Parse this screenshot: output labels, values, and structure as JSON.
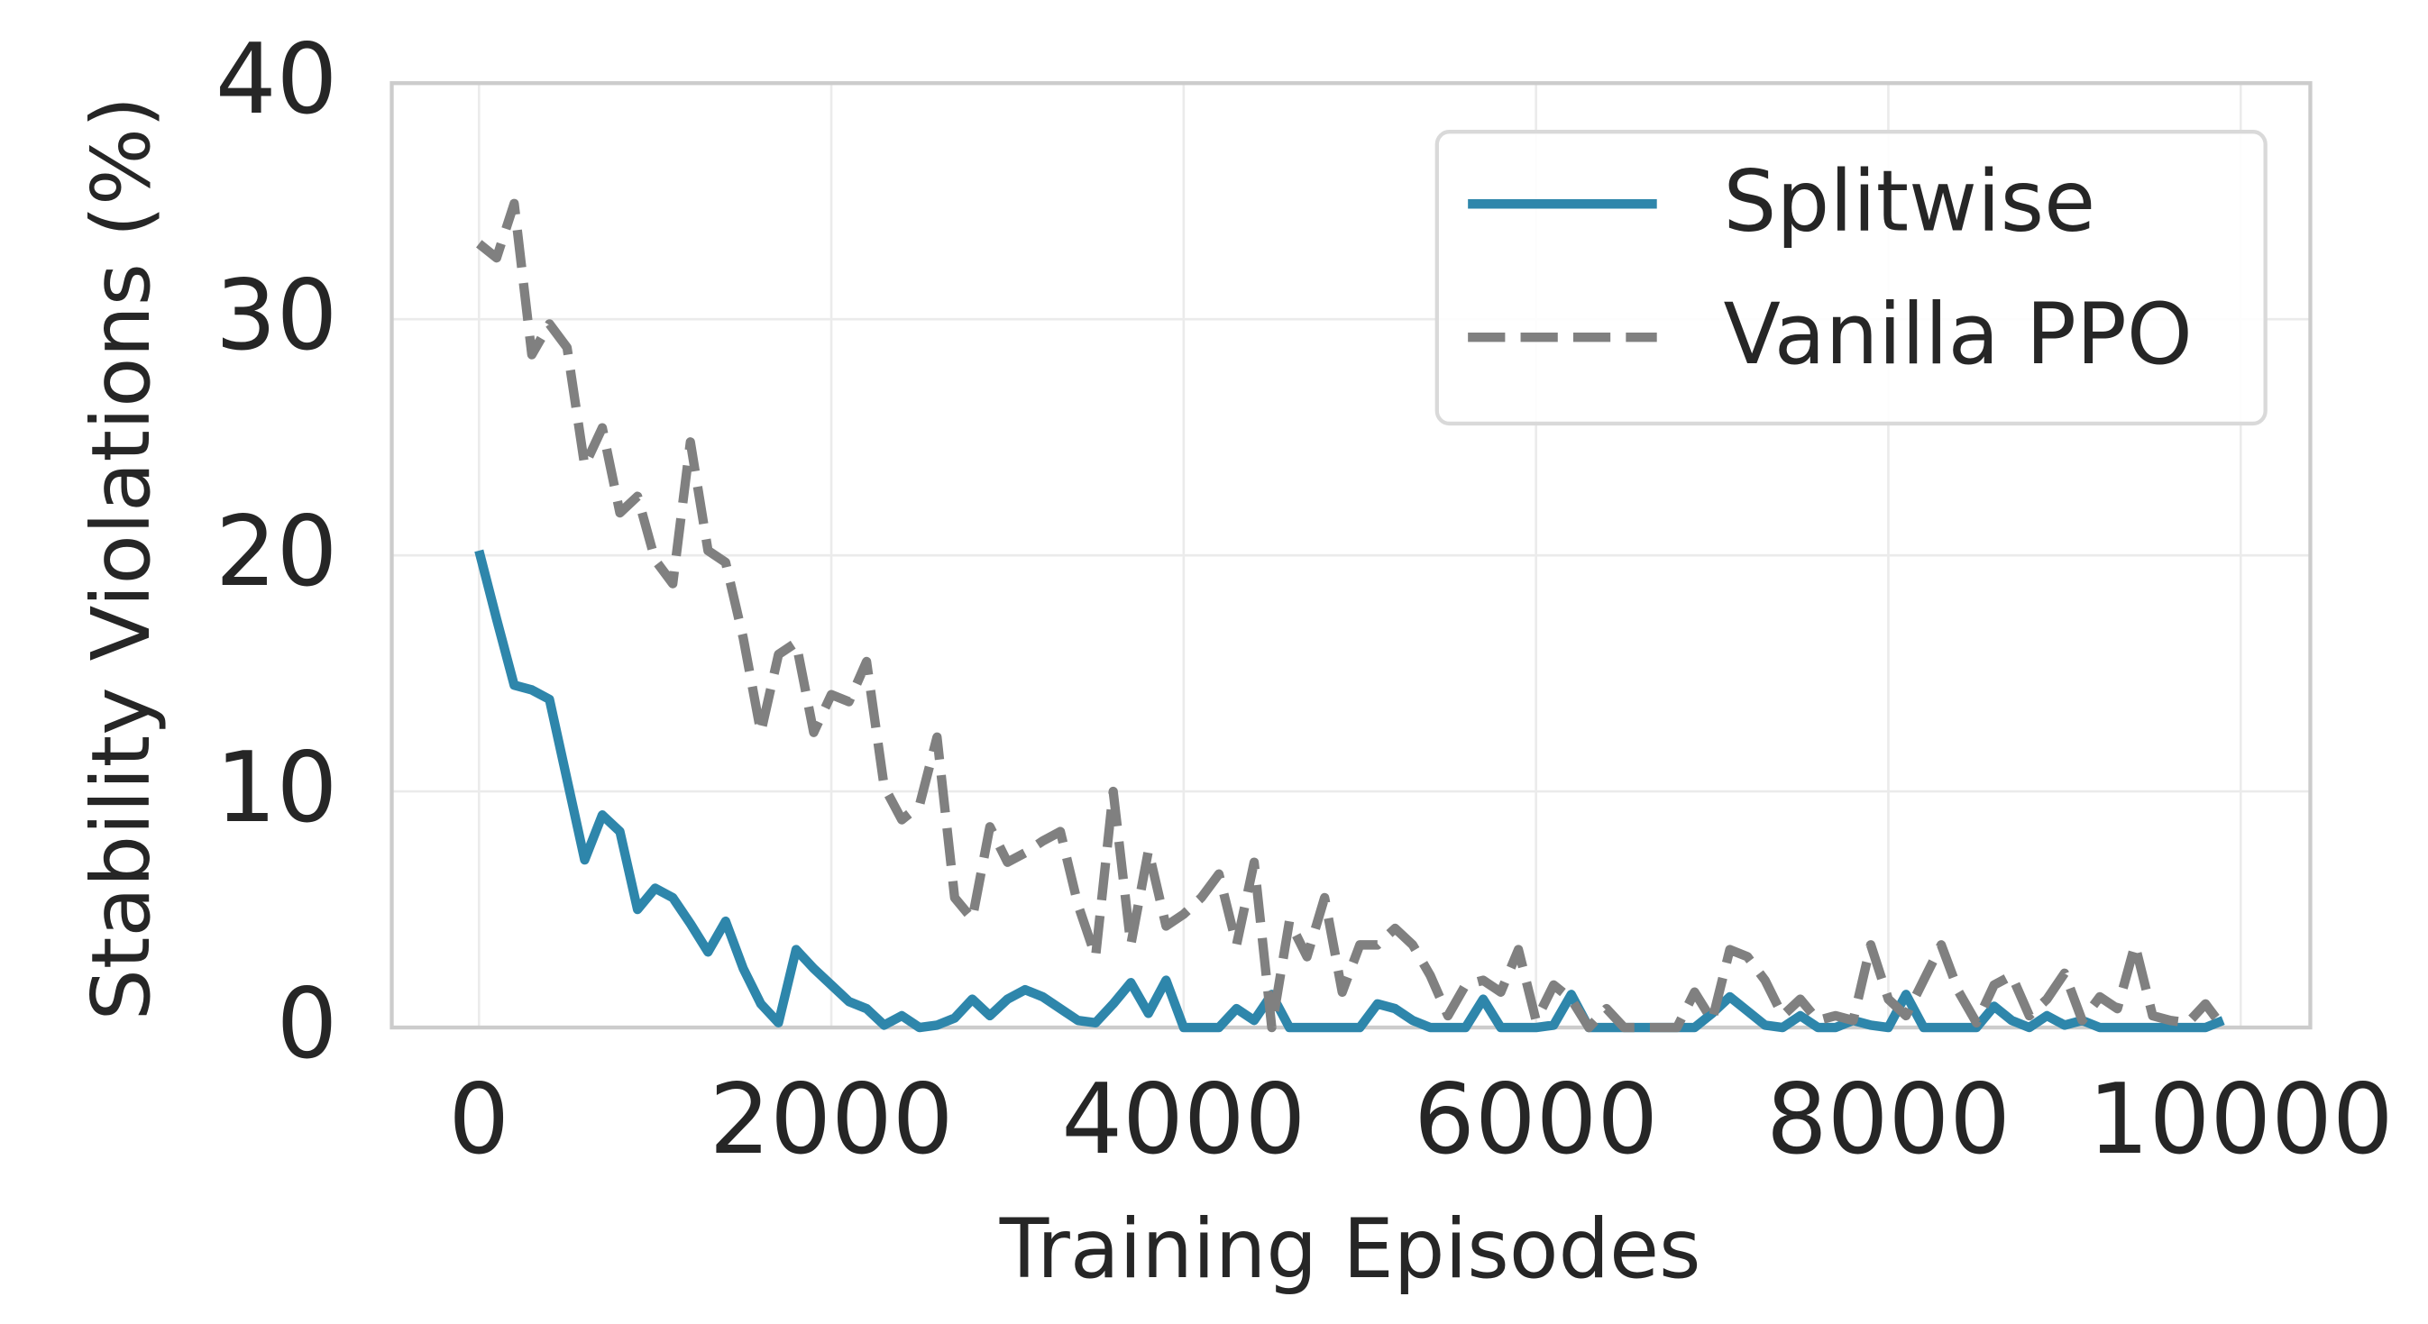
{
  "chart_data": {
    "type": "line",
    "xlabel": "Training Episodes",
    "ylabel": "Stability Violations (%)",
    "x": [
      0,
      100,
      200,
      300,
      400,
      500,
      600,
      700,
      800,
      900,
      1000,
      1100,
      1200,
      1300,
      1400,
      1500,
      1600,
      1700,
      1800,
      1900,
      2000,
      2100,
      2200,
      2300,
      2400,
      2500,
      2600,
      2700,
      2800,
      2900,
      3000,
      3100,
      3200,
      3300,
      3400,
      3500,
      3600,
      3700,
      3800,
      3900,
      4000,
      4100,
      4200,
      4300,
      4400,
      4500,
      4600,
      4700,
      4800,
      4900,
      5000,
      5100,
      5200,
      5300,
      5400,
      5500,
      5600,
      5700,
      5800,
      5900,
      6000,
      6100,
      6200,
      6300,
      6400,
      6500,
      6600,
      6700,
      6800,
      6900,
      7000,
      7100,
      7200,
      7300,
      7400,
      7500,
      7600,
      7700,
      7800,
      7900,
      8000,
      8100,
      8200,
      8300,
      8400,
      8500,
      8600,
      8700,
      8800,
      8900,
      9000,
      9100,
      9200,
      9300,
      9400,
      9500,
      9600,
      9700,
      9800,
      9900
    ],
    "series": [
      {
        "name": "Splitwise",
        "color": "#2e86ab",
        "dashed": false,
        "values": [
          20.2,
          17.3,
          14.5,
          14.3,
          13.9,
          10.5,
          7.1,
          9.0,
          8.3,
          5.0,
          5.9,
          5.5,
          4.4,
          3.2,
          4.5,
          2.5,
          1.0,
          0.2,
          3.3,
          2.5,
          1.8,
          1.1,
          0.8,
          0.1,
          0.5,
          0,
          0.1,
          0.4,
          1.2,
          0.5,
          1.2,
          1.6,
          1.3,
          0.8,
          0.3,
          0.2,
          1.0,
          1.9,
          0.6,
          2.0,
          0,
          0,
          0,
          0.8,
          0.3,
          1.4,
          0,
          0,
          0,
          0,
          0,
          1.0,
          0.8,
          0.3,
          0,
          0,
          0,
          1.2,
          0,
          0,
          0,
          0.1,
          1.4,
          0,
          0,
          0,
          0,
          0,
          0,
          0,
          0.6,
          1.3,
          0.7,
          0.1,
          0,
          0.5,
          0,
          0,
          0.3,
          0.1,
          0,
          1.4,
          0,
          0,
          0,
          0,
          0.9,
          0.3,
          0,
          0.5,
          0.1,
          0.3,
          0,
          0,
          0,
          0,
          0,
          0,
          0,
          0.3
        ]
      },
      {
        "name": "Vanilla PPO",
        "color": "#808080",
        "dashed": true,
        "values": [
          33.2,
          32.6,
          34.9,
          28.5,
          29.8,
          28.8,
          23.8,
          25.4,
          21.8,
          22.5,
          19.8,
          18.8,
          24.8,
          20.2,
          19.7,
          16.5,
          12.5,
          15.8,
          16.3,
          12.5,
          14.1,
          13.8,
          15.5,
          10.2,
          8.8,
          9.4,
          12.3,
          5.5,
          4.6,
          8.5,
          7.0,
          7.4,
          7.9,
          8.3,
          5.2,
          3.0,
          10.0,
          3.5,
          7.5,
          4.3,
          4.8,
          5.5,
          6.5,
          3.5,
          7.0,
          0,
          4.5,
          3.0,
          5.5,
          1.5,
          3.5,
          3.5,
          4.2,
          3.5,
          2.2,
          0.5,
          1.8,
          2.0,
          1.5,
          3.3,
          0.3,
          1.8,
          1.2,
          0,
          0.8,
          0,
          0,
          0,
          0,
          1.5,
          0.3,
          3.3,
          3.0,
          2.0,
          0.5,
          1.2,
          0.3,
          0.5,
          0.3,
          3.5,
          1.2,
          0.5,
          2.0,
          3.5,
          1.5,
          0.2,
          1.8,
          2.2,
          0.5,
          1.2,
          2.3,
          0.3,
          1.3,
          0.8,
          3.5,
          0.5,
          0.3,
          0.2,
          1.0,
          0
        ]
      }
    ],
    "xlim": [
      -495,
      10395
    ],
    "xticks": [
      0,
      2000,
      4000,
      6000,
      8000,
      10000
    ],
    "ylim": [
      0,
      40
    ],
    "yticks": [
      0,
      10,
      20,
      30,
      40
    ],
    "grid": true,
    "legend": "upper right"
  }
}
